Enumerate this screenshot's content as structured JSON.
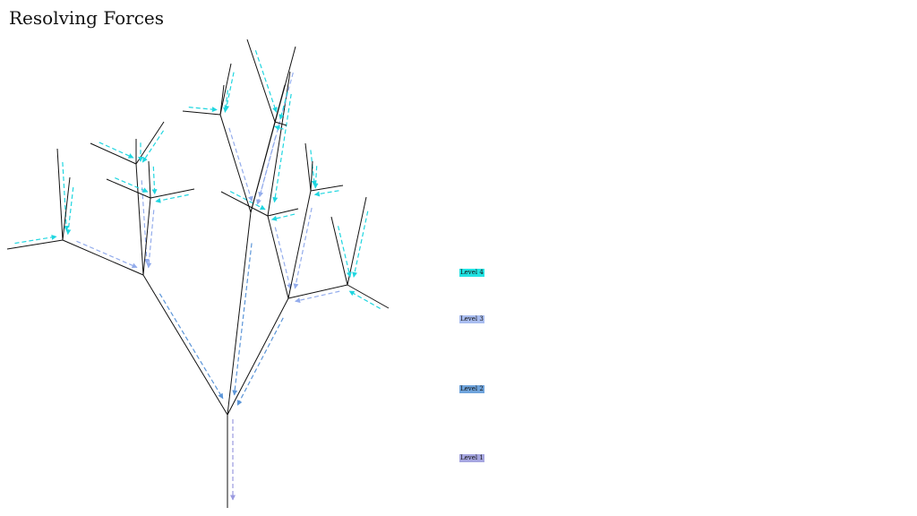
{
  "header": {
    "title": "Resolving Forces"
  },
  "legend": {
    "levels": [
      "Level 4",
      "Level 3",
      "Level 2",
      "Level 1"
    ]
  }
}
